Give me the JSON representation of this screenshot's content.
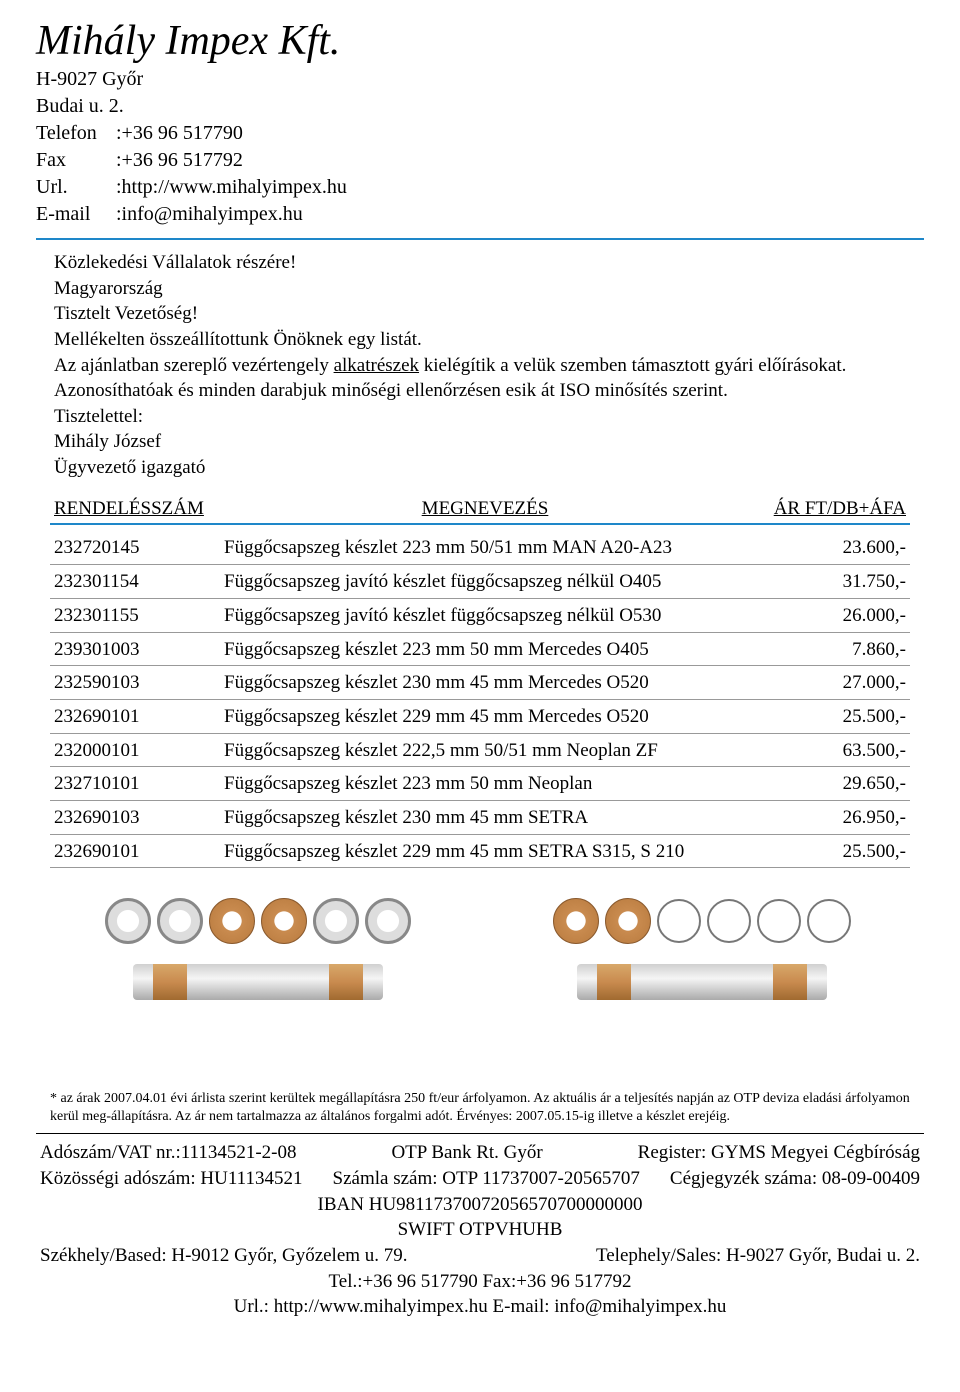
{
  "company": {
    "name": "Mihály Impex Kft.",
    "address1": "H-9027 Győr",
    "address2": "Budai u. 2.",
    "phone_label": "Telefon",
    "phone": ":+36 96 517790",
    "fax_label": "Fax",
    "fax": ":+36 96 517792",
    "url_label": "Url.",
    "url": ":http://www.mihalyimpex.hu",
    "email_label": "E-mail",
    "email": ":info@mihalyimpex.hu"
  },
  "letter": {
    "l1": "Közlekedési Vállalatok részére!",
    "l2": "Magyarország",
    "l3": "Tisztelt Vezetőség!",
    "l4": "Mellékelten összeállítottunk Önöknek egy listát.",
    "l5a": "Az ajánlatban szereplő vezértengely ",
    "l5b": "alkatrészek",
    "l5c": " kielégítik a velük szemben támasztott gyári előírásokat.",
    "l6": "Azonosíthatóak és minden darabjuk minőségi ellenőrzésen esik át ISO minősítés szerint.",
    "l7": "Tisztelettel:",
    "l8": "Mihály József",
    "l9": "Ügyvezető igazgató"
  },
  "table": {
    "h1": "RENDELÉSSZÁM",
    "h2": "MEGNEVEZÉS",
    "h3": "ÁR FT/DB+ÁFA",
    "rows": [
      {
        "num": "232720145",
        "name": "Függőcsapszeg készlet 223 mm 50/51 mm MAN A20-A23",
        "price": "23.600,-"
      },
      {
        "num": "232301154",
        "name": "Függőcsapszeg javító készlet függőcsapszeg nélkül O405",
        "price": "31.750,-"
      },
      {
        "num": "232301155",
        "name": "Függőcsapszeg javító készlet függőcsapszeg nélkül O530",
        "price": "26.000,-"
      },
      {
        "num": "239301003",
        "name": "Függőcsapszeg készlet 223 mm 50 mm Mercedes O405",
        "price": "7.860,-"
      },
      {
        "num": "232590103",
        "name": "Függőcsapszeg készlet 230 mm 45 mm Mercedes O520",
        "price": "27.000,-"
      },
      {
        "num": "232690101",
        "name": "Függőcsapszeg készlet 229 mm 45 mm Mercedes O520",
        "price": "25.500,-"
      },
      {
        "num": "232000101",
        "name": "Függőcsapszeg készlet 222,5 mm 50/51 mm Neoplan ZF",
        "price": "63.500,-"
      },
      {
        "num": "232710101",
        "name": "Függőcsapszeg készlet 223 mm 50 mm Neoplan",
        "price": "29.650,-"
      },
      {
        "num": "232690103",
        "name": "Függőcsapszeg készlet 230 mm 45 mm SETRA",
        "price": "26.950,-"
      },
      {
        "num": "232690101",
        "name": "Függőcsapszeg készlet 229 mm 45 mm SETRA S315, S 210",
        "price": "25.500,-"
      }
    ]
  },
  "footnote": "* az árak 2007.04.01 évi árlista szerint kerültek megállapításra 250 ft/eur árfolyamon. Az aktuális ár a teljesítés napján az OTP deviza eladási árfolyamon kerül meg-állapításra. Az ár nem tartalmazza az általános forgalmi adót. Érvényes: 2007.05.15-ig illetve a készlet erejéig.",
  "footer": {
    "r1l": "Adószám/VAT nr.:11134521-2-08",
    "r1c": "OTP Bank Rt. Győr",
    "r1r": "Register: GYMS Megyei Cégbíróság",
    "r2l": "Közösségi adószám: HU11134521",
    "r2c": "Számla szám: OTP 11737007-20565707",
    "r2r": "Cégjegyzék száma: 08-09-00409",
    "r3": "IBAN HU98117370072056570700000000",
    "r4": "SWIFT OTPVHUHB",
    "r5l": "Székhely/Based: H-9012 Győr, Győzelem u. 79.",
    "r5r": "Telephely/Sales: H-9027 Győr, Budai u. 2.",
    "r6": "Tel.:+36 96 517790 Fax:+36 96 517792",
    "r7": "Url.: http://www.mihalyimpex.hu E-mail: info@mihalyimpex.hu"
  },
  "colors": {
    "accent": "#1e87c9",
    "text": "#000000",
    "bg": "#ffffff"
  }
}
